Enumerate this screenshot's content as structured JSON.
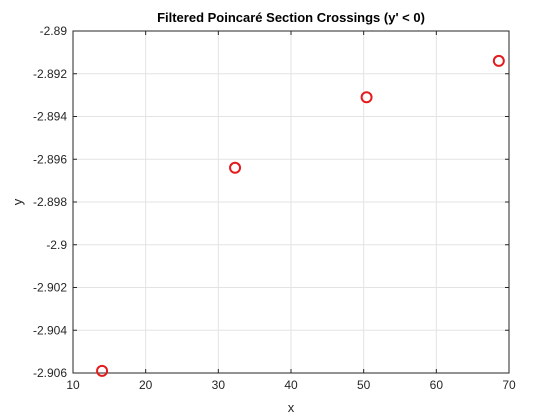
{
  "chart_data": {
    "type": "scatter",
    "title": "Filtered Poincaré Section Crossings (y' < 0)",
    "xlabel": "x",
    "ylabel": "y",
    "xlim": [
      10,
      70
    ],
    "ylim": [
      -2.906,
      -2.89
    ],
    "xticks": [
      10,
      20,
      30,
      40,
      50,
      60,
      70
    ],
    "yticks": [
      -2.906,
      -2.904,
      -2.902,
      -2.9,
      -2.898,
      -2.896,
      -2.894,
      -2.892,
      -2.89
    ],
    "xtick_labels": [
      "10",
      "20",
      "30",
      "40",
      "50",
      "60",
      "70"
    ],
    "ytick_labels": [
      "-2.906",
      "-2.904",
      "-2.902",
      "-2.9",
      "-2.898",
      "-2.896",
      "-2.894",
      "-2.892",
      "-2.89"
    ],
    "grid": true,
    "legend": "none",
    "series": [
      {
        "marker": "circle-open",
        "color": "#e41a1c",
        "x": [
          14.0,
          32.3,
          50.4,
          68.6
        ],
        "y": [
          -2.9059,
          -2.8964,
          -2.8931,
          -2.8914
        ]
      }
    ]
  }
}
